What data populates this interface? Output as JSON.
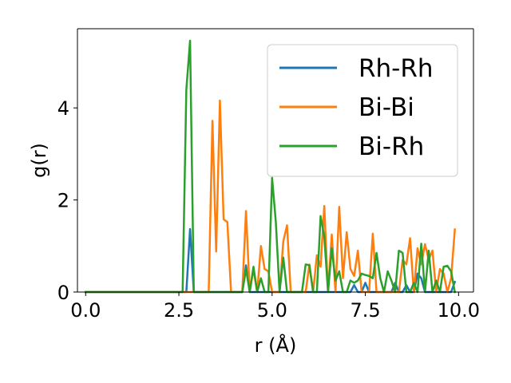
{
  "chart_data": {
    "type": "line",
    "title": "",
    "xlabel": "r (Å)",
    "ylabel": "g(r)",
    "xlim": [
      -0.22,
      10.4
    ],
    "ylim": [
      0,
      5.72
    ],
    "xticks": [
      "0.0",
      "2.5",
      "5.0",
      "7.5",
      "10.0"
    ],
    "xtick_values": [
      0,
      2.5,
      5,
      7.5,
      10
    ],
    "yticks": [
      "0",
      "2",
      "4"
    ],
    "ytick_values": [
      0,
      2,
      4
    ],
    "grid": false,
    "legend_position": "top-right",
    "x": [
      0.0,
      0.1,
      0.2,
      0.3,
      0.4,
      0.5,
      0.6,
      0.7,
      0.8,
      0.9,
      1.0,
      1.1,
      1.2,
      1.3,
      1.4,
      1.5,
      1.6,
      1.7,
      1.8,
      1.9,
      2.0,
      2.1,
      2.2,
      2.3,
      2.4,
      2.5,
      2.6,
      2.7,
      2.8,
      2.9,
      3.0,
      3.1,
      3.2,
      3.3,
      3.4,
      3.5,
      3.6,
      3.7,
      3.8,
      3.9,
      4.0,
      4.1,
      4.2,
      4.3,
      4.4,
      4.5,
      4.6,
      4.7,
      4.8,
      4.9,
      5.0,
      5.1,
      5.2,
      5.3,
      5.4,
      5.5,
      5.6,
      5.7,
      5.8,
      5.9,
      6.0,
      6.1,
      6.2,
      6.3,
      6.4,
      6.5,
      6.6,
      6.7,
      6.8,
      6.9,
      7.0,
      7.1,
      7.2,
      7.3,
      7.4,
      7.5,
      7.6,
      7.7,
      7.8,
      7.9,
      8.0,
      8.1,
      8.2,
      8.3,
      8.4,
      8.5,
      8.6,
      8.7,
      8.8,
      8.9,
      9.0,
      9.1,
      9.2,
      9.3,
      9.4,
      9.5,
      9.6,
      9.7,
      9.8,
      9.9
    ],
    "series": [
      {
        "name": "Rh-Rh",
        "color": "#1f77b4",
        "values": [
          0,
          0,
          0,
          0,
          0,
          0,
          0,
          0,
          0,
          0,
          0,
          0,
          0,
          0,
          0,
          0,
          0,
          0,
          0,
          0,
          0,
          0,
          0,
          0,
          0,
          0,
          0,
          0,
          1.37,
          0,
          0,
          0,
          0,
          0,
          0,
          0,
          0,
          0,
          0,
          0,
          0,
          0,
          0,
          0.58,
          0,
          0,
          0,
          0,
          0,
          0,
          0,
          0,
          0,
          0,
          0,
          0,
          0,
          0,
          0,
          0,
          0,
          0,
          0,
          0,
          0,
          0,
          0,
          0,
          0,
          0,
          0,
          0,
          0.15,
          0,
          0,
          0.2,
          0,
          0,
          0,
          0,
          0,
          0,
          0,
          0.2,
          0,
          0,
          0.15,
          0,
          0,
          0.4,
          0.3,
          0,
          0,
          0,
          0,
          0,
          0,
          0,
          0,
          0.22
        ]
      },
      {
        "name": "Bi-Bi",
        "color": "#ff7f0e",
        "values": [
          0,
          0,
          0,
          0,
          0,
          0,
          0,
          0,
          0,
          0,
          0,
          0,
          0,
          0,
          0,
          0,
          0,
          0,
          0,
          0,
          0,
          0,
          0,
          0,
          0,
          0,
          0,
          0,
          0,
          0,
          0,
          0,
          0,
          0,
          3.72,
          0.88,
          4.16,
          1.58,
          1.52,
          0,
          0,
          0,
          0,
          1.76,
          0,
          0.5,
          0,
          1.0,
          0.5,
          0.45,
          0,
          0,
          0,
          1.1,
          1.45,
          0,
          0,
          0,
          0,
          0,
          0.6,
          0,
          0.8,
          0.55,
          1.87,
          0,
          1.25,
          0,
          1.85,
          0.3,
          1.3,
          0.5,
          0.35,
          0.9,
          0,
          0,
          0,
          1.27,
          0,
          0,
          0,
          0,
          0,
          0,
          0,
          0.7,
          0.6,
          1.17,
          0,
          0.95,
          0.6,
          1.04,
          0.7,
          0.9,
          0,
          0.5,
          0.4,
          0,
          0.3,
          1.36
        ]
      },
      {
        "name": "Bi-Rh",
        "color": "#2ca02c",
        "values": [
          0,
          0,
          0,
          0,
          0,
          0,
          0,
          0,
          0,
          0,
          0,
          0,
          0,
          0,
          0,
          0,
          0,
          0,
          0,
          0,
          0,
          0,
          0,
          0,
          0,
          0,
          0,
          4.4,
          5.46,
          0,
          0,
          0,
          0,
          0,
          0,
          0,
          0,
          0,
          0,
          0,
          0,
          0,
          0,
          0.5,
          0,
          0.55,
          0,
          0.3,
          0,
          0,
          2.48,
          1.52,
          0,
          0.75,
          0,
          0,
          0,
          0,
          0,
          0.6,
          0.58,
          0,
          0,
          1.65,
          1.2,
          0,
          0.95,
          0.25,
          0.45,
          0,
          0,
          0.25,
          0.2,
          0.25,
          0.4,
          0.37,
          0.35,
          0.3,
          0.85,
          0.3,
          0,
          0.45,
          0.25,
          0,
          0.9,
          0.85,
          0,
          0,
          0.2,
          0,
          1.05,
          0,
          0.9,
          0,
          0.25,
          0,
          0.55,
          0.57,
          0.45,
          0
        ]
      }
    ]
  }
}
